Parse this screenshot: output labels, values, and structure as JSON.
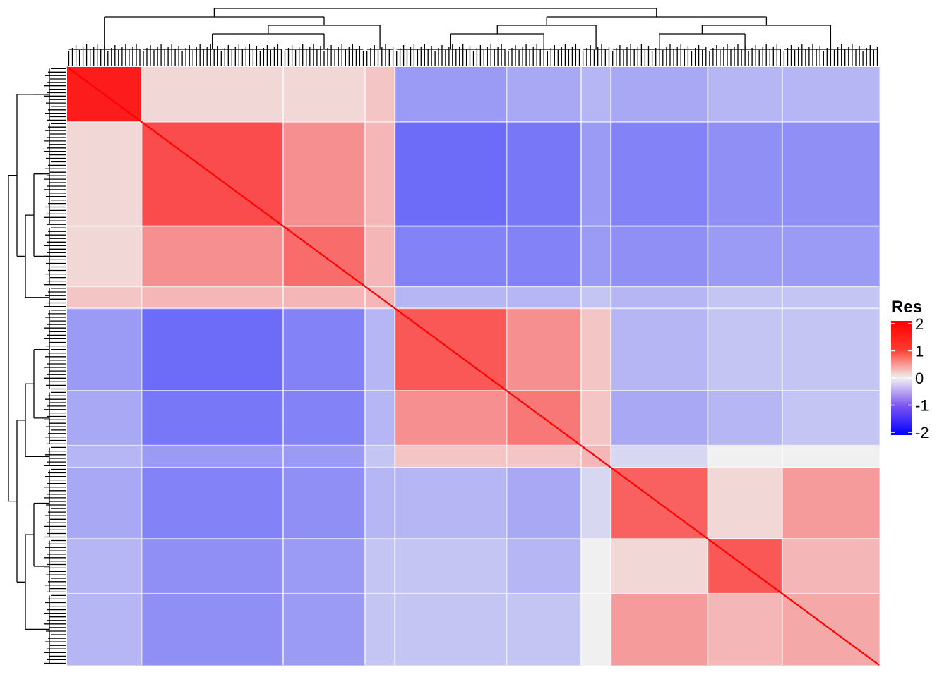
{
  "chart_data": {
    "type": "heatmap",
    "title": "",
    "xlabel": "",
    "ylabel": "",
    "row_dendrogram": "left",
    "column_dendrogram": "top",
    "clusters": [
      {
        "id": "A",
        "relative_size": 10,
        "internal_value": 1.7
      },
      {
        "id": "B1",
        "relative_size": 19,
        "internal_value": 1.2
      },
      {
        "id": "B2",
        "relative_size": 11,
        "internal_value": 0.9
      },
      {
        "id": "B3",
        "relative_size": 4,
        "internal_value": 0.3
      },
      {
        "id": "C1",
        "relative_size": 15,
        "internal_value": 1.1
      },
      {
        "id": "C2",
        "relative_size": 10,
        "internal_value": 0.8
      },
      {
        "id": "C3",
        "relative_size": 4,
        "internal_value": 0.3
      },
      {
        "id": "D1",
        "relative_size": 13,
        "internal_value": 1.0
      },
      {
        "id": "D2",
        "relative_size": 10,
        "internal_value": 1.1
      },
      {
        "id": "D3",
        "relative_size": 13,
        "internal_value": 0.4
      }
    ],
    "between_cluster_values": [
      [
        1.7,
        0.1,
        0.1,
        0.2,
        -0.5,
        -0.4,
        -0.3,
        -0.4,
        -0.3,
        -0.3
      ],
      [
        0.1,
        1.2,
        0.6,
        0.3,
        -0.9,
        -0.8,
        -0.5,
        -0.7,
        -0.6,
        -0.6
      ],
      [
        0.1,
        0.6,
        0.9,
        0.3,
        -0.7,
        -0.7,
        -0.5,
        -0.6,
        -0.5,
        -0.5
      ],
      [
        0.2,
        0.3,
        0.3,
        0.3,
        -0.3,
        -0.3,
        -0.2,
        -0.3,
        -0.2,
        -0.2
      ],
      [
        -0.5,
        -0.9,
        -0.7,
        -0.3,
        1.1,
        0.6,
        0.2,
        -0.3,
        -0.2,
        -0.2
      ],
      [
        -0.4,
        -0.8,
        -0.7,
        -0.3,
        0.6,
        0.8,
        0.2,
        -0.4,
        -0.3,
        -0.2
      ],
      [
        -0.3,
        -0.5,
        -0.5,
        -0.2,
        0.2,
        0.2,
        0.3,
        -0.1,
        0.0,
        0.0
      ],
      [
        -0.4,
        -0.7,
        -0.6,
        -0.3,
        -0.3,
        -0.4,
        -0.1,
        1.0,
        0.1,
        0.5
      ],
      [
        -0.3,
        -0.6,
        -0.5,
        -0.2,
        -0.2,
        -0.3,
        0.0,
        0.1,
        1.1,
        0.3
      ],
      [
        -0.3,
        -0.6,
        -0.5,
        -0.2,
        -0.2,
        -0.2,
        0.0,
        0.5,
        0.3,
        0.4
      ]
    ],
    "diagonal_value": 2,
    "color_scale": {
      "min": -2,
      "mid": 0,
      "max": 2,
      "low_color": "#0000ff",
      "mid_color": "#f0f0f0",
      "high_color": "#ff0000"
    },
    "legend": {
      "title": "Res",
      "placement": "right",
      "ticks": [
        "2",
        "1",
        "0",
        "-1",
        "-2"
      ],
      "tick_values": [
        2,
        1,
        0,
        -1,
        -2
      ]
    }
  }
}
